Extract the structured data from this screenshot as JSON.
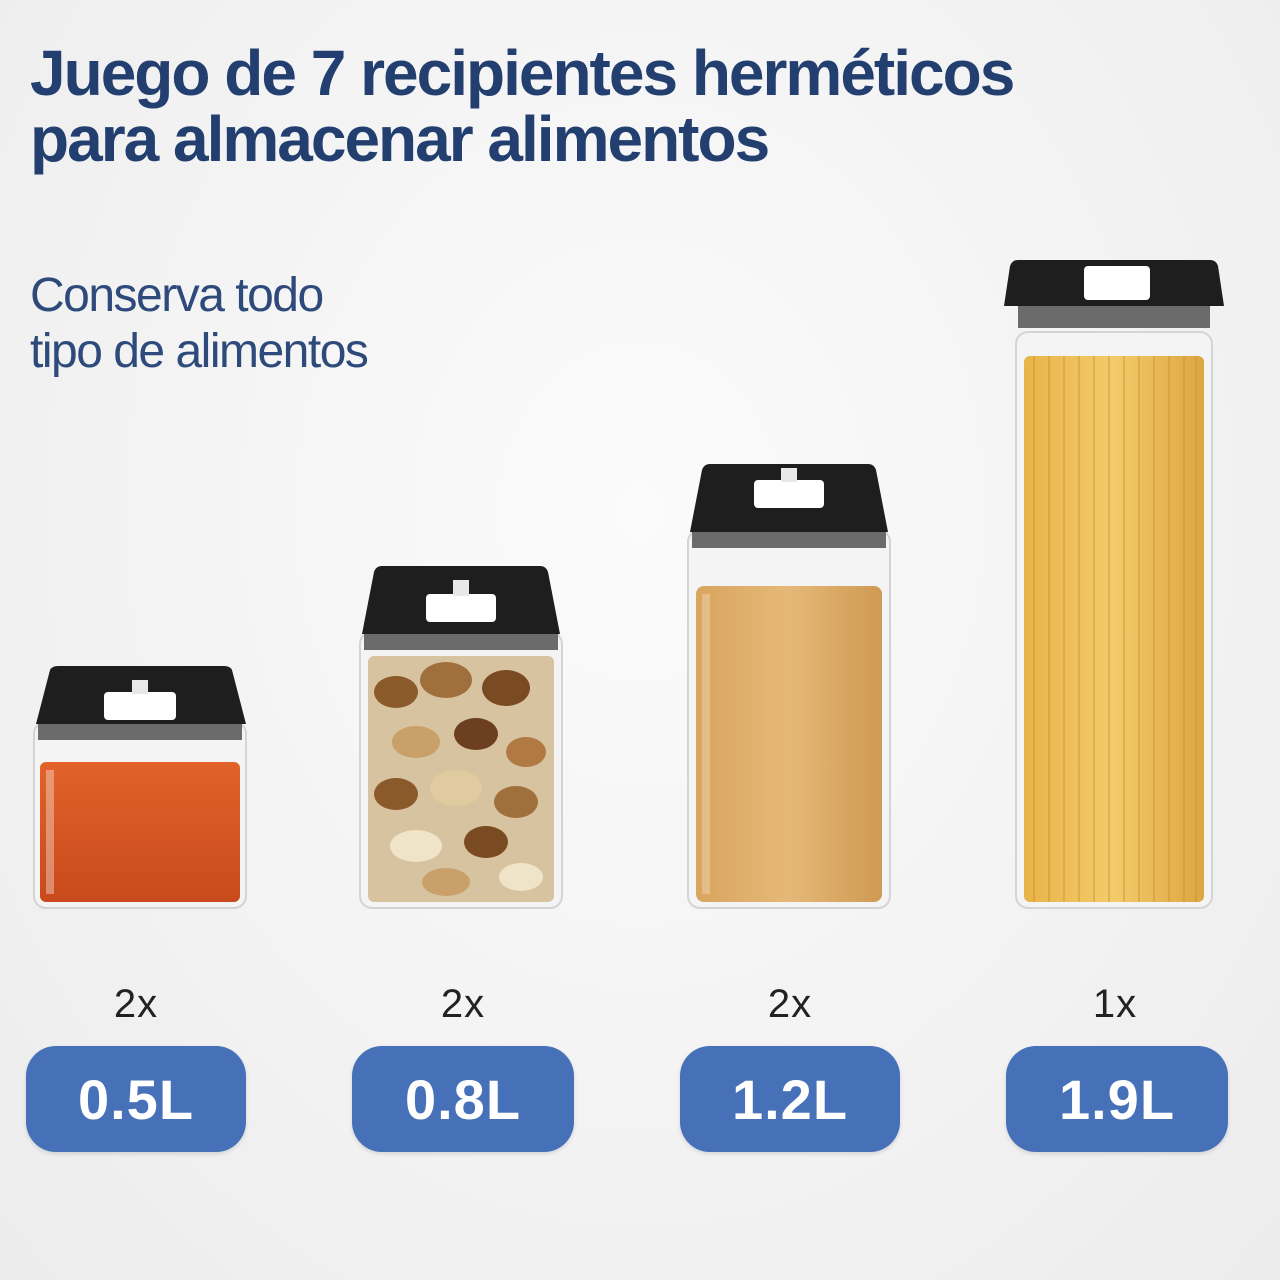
{
  "header": {
    "title_line1": "Juego de 7 recipientes herméticos",
    "title_line2": "para almacenar alimentos",
    "subtitle_line1": "Conserva todo",
    "subtitle_line2": "tipo de alimentos"
  },
  "containers": [
    {
      "quantity": "2x",
      "volume": "0.5L",
      "contents": "paprika"
    },
    {
      "quantity": "2x",
      "volume": "0.8L",
      "contents": "nuts"
    },
    {
      "quantity": "2x",
      "volume": "1.2L",
      "contents": "sugar"
    },
    {
      "quantity": "1x",
      "volume": "1.9L",
      "contents": "spaghetti"
    }
  ],
  "colors": {
    "title": "#233f70",
    "badge": "#4671b8",
    "lid": "#1e1e1e"
  }
}
